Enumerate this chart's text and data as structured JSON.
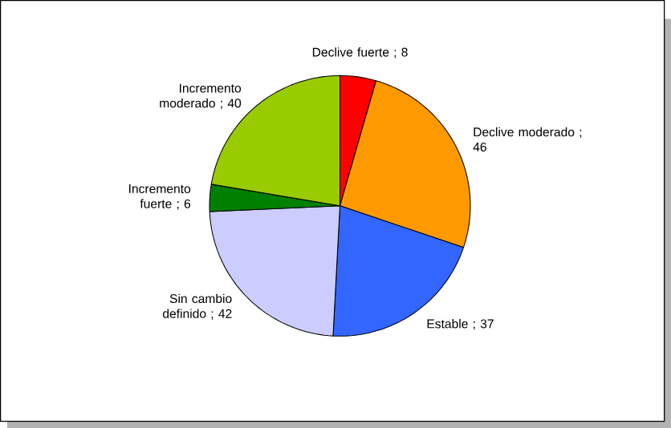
{
  "chart_data": {
    "type": "pie",
    "categories": [
      "Declive fuerte",
      "Declive moderado",
      "Estable",
      "Sin cambio definido",
      "Incremento fuerte",
      "Incremento moderado"
    ],
    "values": [
      8,
      46,
      37,
      42,
      6,
      40
    ],
    "value_labels": [
      "; 8",
      "; 46",
      "; 37",
      "; 42",
      "; 6",
      "; 40"
    ],
    "colors": [
      "#ff0000",
      "#ff9900",
      "#3366ff",
      "#ccccff",
      "#008000",
      "#99cc00"
    ]
  }
}
